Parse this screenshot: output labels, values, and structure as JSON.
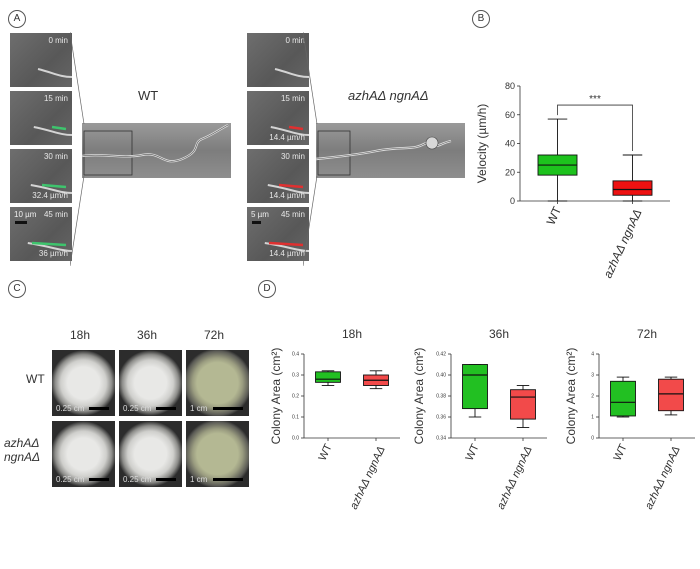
{
  "panels": {
    "a": "A",
    "b": "B",
    "c": "C",
    "d": "D"
  },
  "panel_a": {
    "wt_label": "WT",
    "mutant_label": "azhAΔ ngnAΔ",
    "wt_frames": [
      {
        "time": "0 min",
        "velocity": "",
        "scale": ""
      },
      {
        "time": "15 min",
        "velocity": "",
        "scale": ""
      },
      {
        "time": "30 min",
        "velocity": "32.4 µm/h",
        "scale": ""
      },
      {
        "time": "45 min",
        "velocity": "36 µm/h",
        "scale": "10 µm"
      }
    ],
    "mutant_frames": [
      {
        "time": "0 min",
        "velocity": "",
        "scale": ""
      },
      {
        "time": "15 min",
        "velocity": "14.4 µm/h",
        "scale": ""
      },
      {
        "time": "30 min",
        "velocity": "14.4 µm/h",
        "scale": ""
      },
      {
        "time": "45 min",
        "velocity": "14.4 µm/h",
        "scale": "5 µm"
      }
    ],
    "colors": {
      "wt_tip": "#3ec46d",
      "mutant_tip": "#e03030"
    }
  },
  "panel_c": {
    "times": [
      "18h",
      "36h",
      "72h"
    ],
    "rows": [
      "WT",
      "azhAΔ\nngnAΔ"
    ],
    "scales": [
      [
        "0.25 cm",
        "0.25 cm",
        "1 cm"
      ],
      [
        "0.25 cm",
        "0.25 cm",
        "1 cm"
      ]
    ]
  },
  "chart_data": [
    {
      "type": "box",
      "panel": "B",
      "ylabel": "Velocity (µm/h)",
      "categories": [
        "WT",
        "azhAΔ ngnAΔ"
      ],
      "ylim": [
        0,
        80
      ],
      "yticks": [
        0,
        20,
        40,
        60,
        80
      ],
      "boxes": [
        {
          "min": 0,
          "q1": 18,
          "median": 25,
          "q3": 32,
          "max": 57,
          "color": "#1dc21d"
        },
        {
          "min": 0,
          "q1": 4,
          "median": 8,
          "q3": 14,
          "max": 32,
          "color": "#ee1111"
        }
      ],
      "annotation": "***"
    },
    {
      "type": "box",
      "panel": "D",
      "title": "18h",
      "ylabel": "Colony Area (cm²)",
      "categories": [
        "WT",
        "azhAΔ ngnAΔ"
      ],
      "ylim": [
        0,
        0.4
      ],
      "yticks": [
        0.0,
        0.1,
        0.2,
        0.3,
        0.4
      ],
      "tick_labels": [
        "0.0",
        "0.1",
        "0.2",
        "0.3",
        "0.4"
      ],
      "boxes": [
        {
          "min": 0.25,
          "q1": 0.265,
          "median": 0.28,
          "q3": 0.315,
          "max": 0.32,
          "color": "#22c022"
        },
        {
          "min": 0.235,
          "q1": 0.25,
          "median": 0.275,
          "q3": 0.3,
          "max": 0.32,
          "color": "#f24a4a"
        }
      ]
    },
    {
      "type": "box",
      "panel": "D",
      "title": "36h",
      "ylabel": "Colony Area (cm²)",
      "categories": [
        "WT",
        "azhAΔ ngnAΔ"
      ],
      "ylim": [
        0.34,
        0.42
      ],
      "yticks": [
        0.34,
        0.36,
        0.38,
        0.4,
        0.42
      ],
      "tick_labels": [
        "0.34",
        "0.36",
        "0.38",
        "0.40",
        "0.42"
      ],
      "boxes": [
        {
          "min": 0.36,
          "q1": 0.368,
          "median": 0.4,
          "q3": 0.41,
          "max": 0.41,
          "color": "#22c022"
        },
        {
          "min": 0.35,
          "q1": 0.358,
          "median": 0.379,
          "q3": 0.386,
          "max": 0.39,
          "color": "#f24a4a"
        }
      ]
    },
    {
      "type": "box",
      "panel": "D",
      "title": "72h",
      "ylabel": "Colony Area (cm²)",
      "categories": [
        "WT",
        "azhAΔ ngnAΔ"
      ],
      "ylim": [
        0,
        4
      ],
      "yticks": [
        0,
        1,
        2,
        3,
        4
      ],
      "tick_labels": [
        "0",
        "1",
        "2",
        "3",
        "4"
      ],
      "boxes": [
        {
          "min": 1.0,
          "q1": 1.05,
          "median": 1.7,
          "q3": 2.7,
          "max": 2.9,
          "color": "#22c022"
        },
        {
          "min": 1.1,
          "q1": 1.3,
          "median": 2.1,
          "q3": 2.8,
          "max": 2.9,
          "color": "#f24a4a"
        }
      ]
    }
  ]
}
